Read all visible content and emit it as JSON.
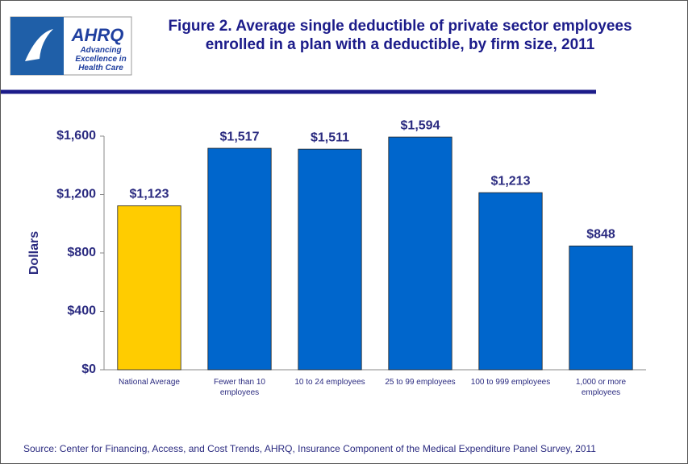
{
  "logo": {
    "name": "AHRQ",
    "tagline": "Advancing Excellence in Health Care"
  },
  "chart_data": {
    "type": "bar",
    "title": "Figure 2. Average single deductible of private sector employees enrolled in a plan with a deductible, by firm size, 2011",
    "ylabel": "Dollars",
    "categories": [
      "National Average",
      "Fewer than 10 employees",
      "10 to 24 employees",
      "25 to 99 employees",
      "100 to 999 employees",
      "1,000 or more employees"
    ],
    "values": [
      1123,
      1517,
      1511,
      1594,
      1213,
      848
    ],
    "value_labels": [
      "$1,123",
      "$1,517",
      "$1,511",
      "$1,594",
      "$1,213",
      "$848"
    ],
    "colors": [
      "#ffcc00",
      "#0066cc",
      "#0066cc",
      "#0066cc",
      "#0066cc",
      "#0066cc"
    ],
    "ylim": [
      0,
      1600
    ],
    "yticks": [
      {
        "value": 0,
        "label": "$0"
      },
      {
        "value": 400,
        "label": "$400"
      },
      {
        "value": 800,
        "label": "$800"
      },
      {
        "value": 1200,
        "label": "$1,200"
      },
      {
        "value": 1600,
        "label": "$1,600"
      }
    ],
    "grid": false,
    "source": "Source: Center for Financing, Access, and Cost Trends, AHRQ, Insurance Component of the Medical Expenditure Panel Survey,  2011"
  }
}
